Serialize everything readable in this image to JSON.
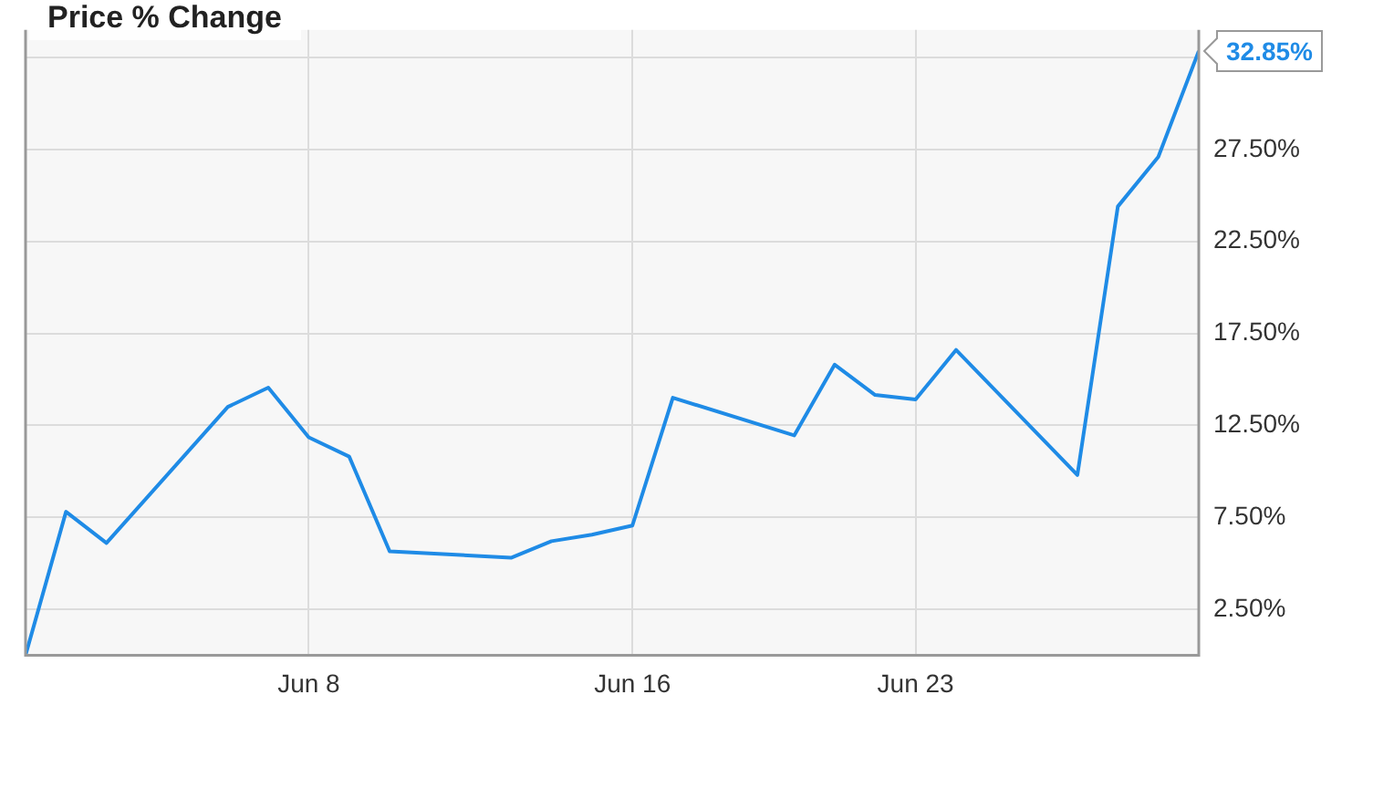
{
  "chart_data": {
    "type": "line",
    "title": "Price % Change",
    "x": [
      "--06-01",
      "--06-02",
      "--06-03",
      "--06-06",
      "--06-07",
      "--06-08",
      "--06-09",
      "--06-10",
      "--06-13",
      "--06-14",
      "--06-15",
      "--06-16",
      "--06-17",
      "--06-20",
      "--06-21",
      "--06-22",
      "--06-23",
      "--06-24",
      "--06-27",
      "--06-28",
      "--06-29",
      "--06-30"
    ],
    "series": [
      {
        "color": "#1f8be6",
        "values": [
          0,
          7.8,
          6.1,
          13.5,
          14.55,
          11.85,
          10.8,
          5.65,
          5.3,
          6.2,
          6.55,
          7.05,
          14.0,
          11.95,
          15.8,
          14.15,
          13.9,
          16.6,
          9.8,
          24.4,
          27.1,
          32.85
        ]
      }
    ],
    "xlim": [
      "--06-01",
      "--06-30"
    ],
    "xticks": [
      {
        "value": "--06-08",
        "label": "Jun 8"
      },
      {
        "value": "--06-16",
        "label": "Jun 16"
      },
      {
        "value": "--06-23",
        "label": "Jun 23"
      }
    ],
    "ylim": [
      0,
      34
    ],
    "yticks": [
      {
        "value": 2.5,
        "label": "2.50%"
      },
      {
        "value": 7.5,
        "label": "7.50%"
      },
      {
        "value": 12.5,
        "label": "12.50%"
      },
      {
        "value": 17.5,
        "label": "17.50%"
      },
      {
        "value": 22.5,
        "label": "22.50%"
      },
      {
        "value": 27.5,
        "label": "27.50%"
      },
      {
        "value": 32.5,
        "label": null
      }
    ],
    "annotations": [
      {
        "text": "32.85%",
        "x": "--06-30",
        "y": 32.85
      }
    ],
    "grid": true,
    "legend": false,
    "marker": "none",
    "line_style": "solid"
  }
}
